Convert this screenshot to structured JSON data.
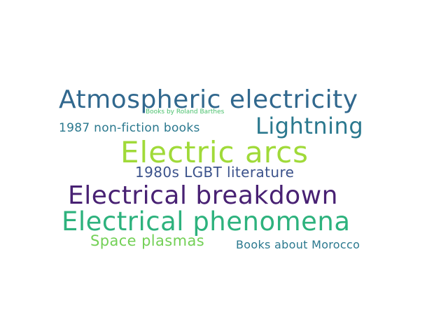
{
  "word_cloud": {
    "background": "#ffffff",
    "words": [
      {
        "text": "Atmospheric electricity",
        "color": "#31688e"
      },
      {
        "text": "Books by Roland Barthes",
        "color": "#4ac16d"
      },
      {
        "text": "Lightning",
        "color": "#2a788e"
      },
      {
        "text": "1987 non-fiction books",
        "color": "#2a788e"
      },
      {
        "text": "Electric arcs",
        "color": "#a0da39"
      },
      {
        "text": "1980s LGBT literature",
        "color": "#3b528b"
      },
      {
        "text": "Electrical breakdown",
        "color": "#482173"
      },
      {
        "text": "Electrical phenomena",
        "color": "#2db27d"
      },
      {
        "text": "Space plasmas",
        "color": "#73d056"
      },
      {
        "text": "Books about Morocco",
        "color": "#2a788e"
      }
    ]
  }
}
